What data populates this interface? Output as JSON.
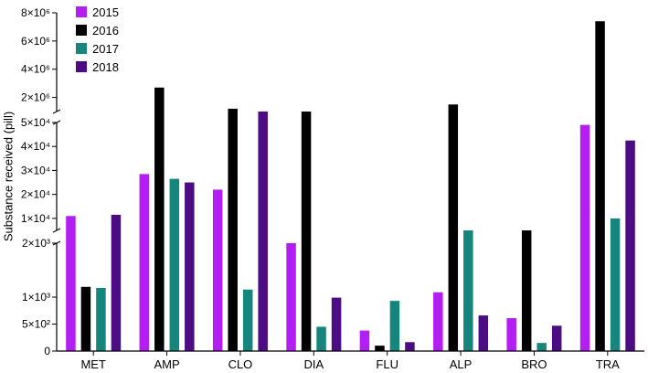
{
  "chart_data": {
    "type": "bar",
    "ylabel": "Substance received (pill)",
    "categories": [
      "MET",
      "AMP",
      "CLO",
      "DIA",
      "FLU",
      "ALP",
      "BRO",
      "TRA"
    ],
    "series": [
      {
        "name": "2015",
        "color": "#B31FF2",
        "values": [
          11000,
          28500,
          22000,
          2000,
          380,
          1090,
          610,
          49000
        ]
      },
      {
        "name": "2016",
        "color": "#000000",
        "values": [
          1190,
          2700000,
          1200000,
          53000,
          100,
          1500000,
          2400,
          7400000
        ]
      },
      {
        "name": "2017",
        "color": "#16857C",
        "values": [
          1170,
          26500,
          1140,
          450,
          930,
          2030,
          150,
          10000
        ]
      },
      {
        "name": "2018",
        "color": "#4B0C84",
        "values": [
          11500,
          25000,
          53000,
          990,
          165,
          660,
          470,
          42500
        ]
      }
    ],
    "y_segments": [
      {
        "range": [
          0,
          2000
        ],
        "ticks": [
          {
            "v": 0,
            "label": "0"
          },
          {
            "v": 500,
            "label": "5×10²"
          },
          {
            "v": 1000,
            "label": "1×10³"
          },
          {
            "v": 2000,
            "label": "2×10³"
          }
        ]
      },
      {
        "range": [
          5000,
          50000
        ],
        "ticks": [
          {
            "v": 10000,
            "label": "1×10⁴"
          },
          {
            "v": 20000,
            "label": "2×10⁴"
          },
          {
            "v": 30000,
            "label": "3×10⁴"
          },
          {
            "v": 40000,
            "label": "4×10⁴"
          },
          {
            "v": 50000,
            "label": "5×10⁴"
          }
        ]
      },
      {
        "range": [
          1000000,
          8000000
        ],
        "ticks": [
          {
            "v": 2000000,
            "label": "2×10⁶"
          },
          {
            "v": 4000000,
            "label": "4×10⁶"
          },
          {
            "v": 6000000,
            "label": "6×10⁶"
          },
          {
            "v": 8000000,
            "label": "8×10⁶"
          }
        ]
      }
    ],
    "legend_position": "top-left",
    "grid": false
  }
}
